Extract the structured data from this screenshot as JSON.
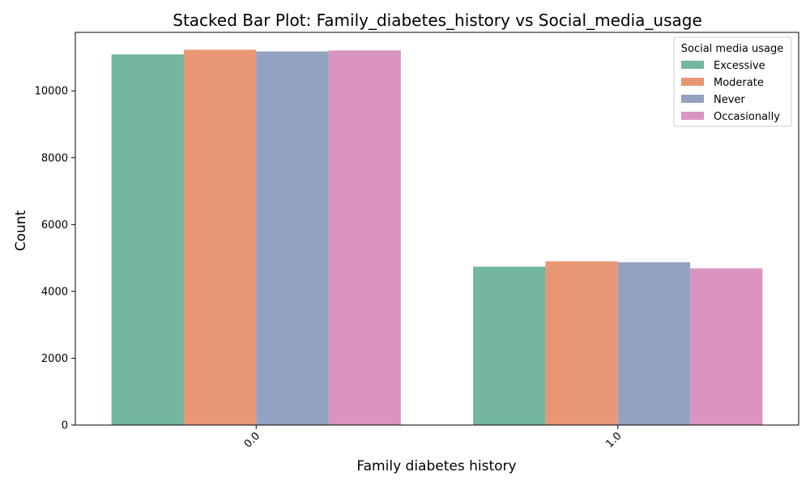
{
  "chart_data": {
    "type": "bar",
    "title": "Stacked Bar Plot: Family_diabetes_history vs Social_media_usage",
    "xlabel": "Family diabetes history",
    "ylabel": "Count",
    "categories": [
      "0.0",
      "1.0"
    ],
    "series": [
      {
        "name": "Excessive",
        "values": [
          11090,
          4740
        ],
        "color": "#73b6a0"
      },
      {
        "name": "Moderate",
        "values": [
          11230,
          4900
        ],
        "color": "#e89774"
      },
      {
        "name": "Never",
        "values": [
          11180,
          4870
        ],
        "color": "#93a2c0"
      },
      {
        "name": "Occasionally",
        "values": [
          11210,
          4690
        ],
        "color": "#d995c0"
      }
    ],
    "ylim": [
      0,
      11750
    ],
    "yticks": [
      0,
      2000,
      4000,
      6000,
      8000,
      10000
    ],
    "legend": {
      "title": "Social media usage",
      "position": "top-right"
    },
    "grid": false,
    "xtick_rotation": "45deg"
  }
}
